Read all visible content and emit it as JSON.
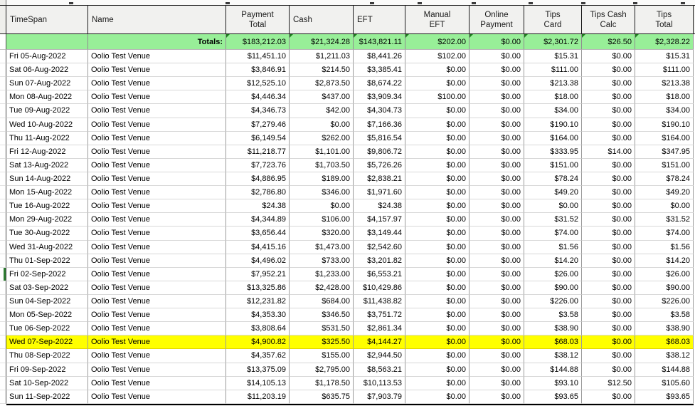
{
  "table": {
    "columns": [
      {
        "key": "timespan",
        "label": "TimeSpan",
        "align": "left"
      },
      {
        "key": "name",
        "label": "Name",
        "align": "left"
      },
      {
        "key": "payment_total",
        "label": "Payment\nTotal",
        "align": "center"
      },
      {
        "key": "cash",
        "label": "Cash",
        "align": "left"
      },
      {
        "key": "eft",
        "label": "EFT",
        "align": "left"
      },
      {
        "key": "manual_eft",
        "label": "Manual\nEFT",
        "align": "center"
      },
      {
        "key": "online_payment",
        "label": "Online\nPayment",
        "align": "center"
      },
      {
        "key": "tips_card",
        "label": "Tips\nCard",
        "align": "center"
      },
      {
        "key": "tips_cash_calc",
        "label": "Tips Cash\nCalc",
        "align": "center"
      },
      {
        "key": "tips_total",
        "label": "Tips\nTotal",
        "align": "center"
      }
    ],
    "totals_label": "Totals:",
    "totals": {
      "payment_total": "$183,212.03",
      "cash": "$21,324.28",
      "eft": "$143,821.11",
      "manual_eft": "$202.00",
      "online_payment": "$0.00",
      "tips_card": "$2,301.72",
      "tips_cash_calc": "$26.50",
      "tips_total": "$2,328.22"
    },
    "rows": [
      {
        "timespan": "Fri 05-Aug-2022",
        "name": "Oolio Test Venue",
        "payment_total": "$11,451.10",
        "cash": "$1,211.03",
        "eft": "$8,441.26",
        "manual_eft": "$102.00",
        "online_payment": "$0.00",
        "tips_card": "$15.31",
        "tips_cash_calc": "$0.00",
        "tips_total": "$15.31"
      },
      {
        "timespan": "Sat 06-Aug-2022",
        "name": "Oolio Test Venue",
        "payment_total": "$3,846.91",
        "cash": "$214.50",
        "eft": "$3,385.41",
        "manual_eft": "$0.00",
        "online_payment": "$0.00",
        "tips_card": "$111.00",
        "tips_cash_calc": "$0.00",
        "tips_total": "$111.00"
      },
      {
        "timespan": "Sun 07-Aug-2022",
        "name": "Oolio Test Venue",
        "payment_total": "$12,525.10",
        "cash": "$2,873.50",
        "eft": "$8,674.22",
        "manual_eft": "$0.00",
        "online_payment": "$0.00",
        "tips_card": "$213.38",
        "tips_cash_calc": "$0.00",
        "tips_total": "$213.38"
      },
      {
        "timespan": "Mon 08-Aug-2022",
        "name": "Oolio Test Venue",
        "payment_total": "$4,446.34",
        "cash": "$437.00",
        "eft": "$3,909.34",
        "manual_eft": "$100.00",
        "online_payment": "$0.00",
        "tips_card": "$18.00",
        "tips_cash_calc": "$0.00",
        "tips_total": "$18.00"
      },
      {
        "timespan": "Tue 09-Aug-2022",
        "name": "Oolio Test Venue",
        "payment_total": "$4,346.73",
        "cash": "$42.00",
        "eft": "$4,304.73",
        "manual_eft": "$0.00",
        "online_payment": "$0.00",
        "tips_card": "$34.00",
        "tips_cash_calc": "$0.00",
        "tips_total": "$34.00"
      },
      {
        "timespan": "Wed 10-Aug-2022",
        "name": "Oolio Test Venue",
        "payment_total": "$7,279.46",
        "cash": "$0.00",
        "eft": "$7,166.36",
        "manual_eft": "$0.00",
        "online_payment": "$0.00",
        "tips_card": "$190.10",
        "tips_cash_calc": "$0.00",
        "tips_total": "$190.10"
      },
      {
        "timespan": "Thu 11-Aug-2022",
        "name": "Oolio Test Venue",
        "payment_total": "$6,149.54",
        "cash": "$262.00",
        "eft": "$5,816.54",
        "manual_eft": "$0.00",
        "online_payment": "$0.00",
        "tips_card": "$164.00",
        "tips_cash_calc": "$0.00",
        "tips_total": "$164.00"
      },
      {
        "timespan": "Fri 12-Aug-2022",
        "name": "Oolio Test Venue",
        "payment_total": "$11,218.77",
        "cash": "$1,101.00",
        "eft": "$9,806.72",
        "manual_eft": "$0.00",
        "online_payment": "$0.00",
        "tips_card": "$333.95",
        "tips_cash_calc": "$14.00",
        "tips_total": "$347.95"
      },
      {
        "timespan": "Sat 13-Aug-2022",
        "name": "Oolio Test Venue",
        "payment_total": "$7,723.76",
        "cash": "$1,703.50",
        "eft": "$5,726.26",
        "manual_eft": "$0.00",
        "online_payment": "$0.00",
        "tips_card": "$151.00",
        "tips_cash_calc": "$0.00",
        "tips_total": "$151.00"
      },
      {
        "timespan": "Sun 14-Aug-2022",
        "name": "Oolio Test Venue",
        "payment_total": "$4,886.95",
        "cash": "$189.00",
        "eft": "$2,838.21",
        "manual_eft": "$0.00",
        "online_payment": "$0.00",
        "tips_card": "$78.24",
        "tips_cash_calc": "$0.00",
        "tips_total": "$78.24"
      },
      {
        "timespan": "Mon 15-Aug-2022",
        "name": "Oolio Test Venue",
        "payment_total": "$2,786.80",
        "cash": "$346.00",
        "eft": "$1,971.60",
        "manual_eft": "$0.00",
        "online_payment": "$0.00",
        "tips_card": "$49.20",
        "tips_cash_calc": "$0.00",
        "tips_total": "$49.20"
      },
      {
        "timespan": "Tue 16-Aug-2022",
        "name": "Oolio Test Venue",
        "payment_total": "$24.38",
        "cash": "$0.00",
        "eft": "$24.38",
        "manual_eft": "$0.00",
        "online_payment": "$0.00",
        "tips_card": "$0.00",
        "tips_cash_calc": "$0.00",
        "tips_total": "$0.00"
      },
      {
        "timespan": "Mon 29-Aug-2022",
        "name": "Oolio Test Venue",
        "payment_total": "$4,344.89",
        "cash": "$106.00",
        "eft": "$4,157.97",
        "manual_eft": "$0.00",
        "online_payment": "$0.00",
        "tips_card": "$31.52",
        "tips_cash_calc": "$0.00",
        "tips_total": "$31.52"
      },
      {
        "timespan": "Tue 30-Aug-2022",
        "name": "Oolio Test Venue",
        "payment_total": "$3,656.44",
        "cash": "$320.00",
        "eft": "$3,149.44",
        "manual_eft": "$0.00",
        "online_payment": "$0.00",
        "tips_card": "$74.00",
        "tips_cash_calc": "$0.00",
        "tips_total": "$74.00"
      },
      {
        "timespan": "Wed 31-Aug-2022",
        "name": "Oolio Test Venue",
        "payment_total": "$4,415.16",
        "cash": "$1,473.00",
        "eft": "$2,542.60",
        "manual_eft": "$0.00",
        "online_payment": "$0.00",
        "tips_card": "$1.56",
        "tips_cash_calc": "$0.00",
        "tips_total": "$1.56"
      },
      {
        "timespan": "Thu 01-Sep-2022",
        "name": "Oolio Test Venue",
        "payment_total": "$4,496.02",
        "cash": "$733.00",
        "eft": "$3,201.82",
        "manual_eft": "$0.00",
        "online_payment": "$0.00",
        "tips_card": "$14.20",
        "tips_cash_calc": "$0.00",
        "tips_total": "$14.20"
      },
      {
        "timespan": "Fri 02-Sep-2022",
        "name": "Oolio Test Venue",
        "payment_total": "$7,952.21",
        "cash": "$1,233.00",
        "eft": "$6,553.21",
        "manual_eft": "$0.00",
        "online_payment": "$0.00",
        "tips_card": "$26.00",
        "tips_cash_calc": "$0.00",
        "tips_total": "$26.00",
        "selected": true
      },
      {
        "timespan": "Sat 03-Sep-2022",
        "name": "Oolio Test Venue",
        "payment_total": "$13,325.86",
        "cash": "$2,428.00",
        "eft": "$10,429.86",
        "manual_eft": "$0.00",
        "online_payment": "$0.00",
        "tips_card": "$90.00",
        "tips_cash_calc": "$0.00",
        "tips_total": "$90.00"
      },
      {
        "timespan": "Sun 04-Sep-2022",
        "name": "Oolio Test Venue",
        "payment_total": "$12,231.82",
        "cash": "$684.00",
        "eft": "$11,438.82",
        "manual_eft": "$0.00",
        "online_payment": "$0.00",
        "tips_card": "$226.00",
        "tips_cash_calc": "$0.00",
        "tips_total": "$226.00"
      },
      {
        "timespan": "Mon 05-Sep-2022",
        "name": "Oolio Test Venue",
        "payment_total": "$4,353.30",
        "cash": "$346.50",
        "eft": "$3,751.72",
        "manual_eft": "$0.00",
        "online_payment": "$0.00",
        "tips_card": "$3.58",
        "tips_cash_calc": "$0.00",
        "tips_total": "$3.58"
      },
      {
        "timespan": "Tue 06-Sep-2022",
        "name": "Oolio Test Venue",
        "payment_total": "$3,808.64",
        "cash": "$531.50",
        "eft": "$2,861.34",
        "manual_eft": "$0.00",
        "online_payment": "$0.00",
        "tips_card": "$38.90",
        "tips_cash_calc": "$0.00",
        "tips_total": "$38.90"
      },
      {
        "timespan": "Wed 07-Sep-2022",
        "name": "Oolio Test Venue",
        "payment_total": "$4,900.82",
        "cash": "$325.50",
        "eft": "$4,144.27",
        "manual_eft": "$0.00",
        "online_payment": "$0.00",
        "tips_card": "$68.03",
        "tips_cash_calc": "$0.00",
        "tips_total": "$68.03",
        "highlighted": true
      },
      {
        "timespan": "Thu 08-Sep-2022",
        "name": "Oolio Test Venue",
        "payment_total": "$4,357.62",
        "cash": "$155.00",
        "eft": "$2,944.50",
        "manual_eft": "$0.00",
        "online_payment": "$0.00",
        "tips_card": "$38.12",
        "tips_cash_calc": "$0.00",
        "tips_total": "$38.12"
      },
      {
        "timespan": "Fri 09-Sep-2022",
        "name": "Oolio Test Venue",
        "payment_total": "$13,375.09",
        "cash": "$2,795.00",
        "eft": "$8,563.21",
        "manual_eft": "$0.00",
        "online_payment": "$0.00",
        "tips_card": "$144.88",
        "tips_cash_calc": "$0.00",
        "tips_total": "$144.88"
      },
      {
        "timespan": "Sat 10-Sep-2022",
        "name": "Oolio Test Venue",
        "payment_total": "$14,105.13",
        "cash": "$1,178.50",
        "eft": "$10,113.53",
        "manual_eft": "$0.00",
        "online_payment": "$0.00",
        "tips_card": "$93.10",
        "tips_cash_calc": "$12.50",
        "tips_total": "$105.60"
      },
      {
        "timespan": "Sun 11-Sep-2022",
        "name": "Oolio Test Venue",
        "payment_total": "$11,203.19",
        "cash": "$635.75",
        "eft": "$7,903.79",
        "manual_eft": "$0.00",
        "online_payment": "$0.00",
        "tips_card": "$93.65",
        "tips_cash_calc": "$0.00",
        "tips_total": "$93.65"
      }
    ]
  },
  "colors": {
    "totals_row_bg": "#98EF98",
    "cell_corner_triangle": "#1C7C1C",
    "highlight_row_bg": "#FFFF00",
    "active_row_marker": "#2E7D32"
  }
}
